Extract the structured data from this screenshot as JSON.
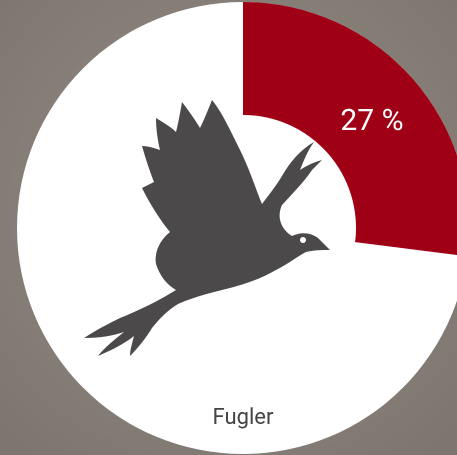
{
  "chart_data": {
    "type": "donut",
    "values": [
      27
    ],
    "value_labels": [
      "27 %"
    ],
    "label": "Fugler",
    "color": "#a00016"
  }
}
